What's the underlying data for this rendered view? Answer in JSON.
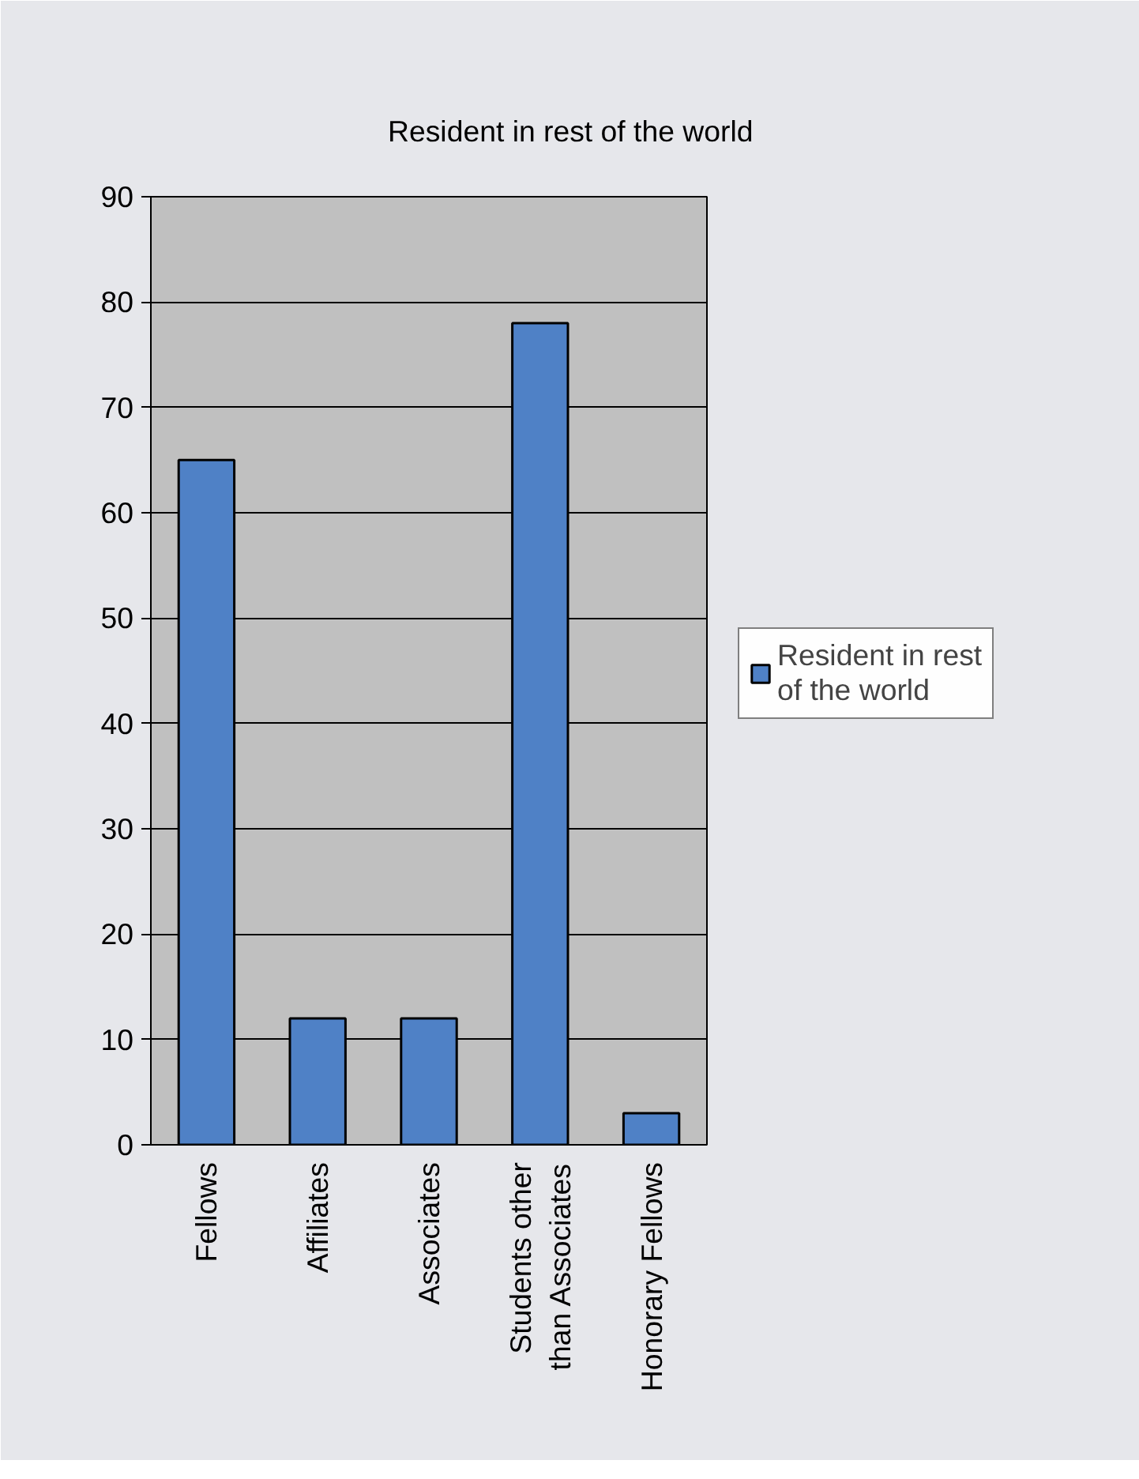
{
  "chart_data": {
    "type": "bar",
    "title": "Resident in rest of the world",
    "categories": [
      "Fellows",
      "Affiliates",
      "Associates",
      "Students other than Associates",
      "Honorary Fellows"
    ],
    "series": [
      {
        "name": "Resident in rest of the world",
        "color": "#4f81c6",
        "values": [
          65,
          12,
          12,
          78,
          3
        ]
      }
    ],
    "ylim": [
      0,
      90
    ],
    "yticks": [
      0,
      10,
      20,
      30,
      40,
      50,
      60,
      70,
      80,
      90
    ],
    "grid": "y",
    "legend": "right"
  }
}
